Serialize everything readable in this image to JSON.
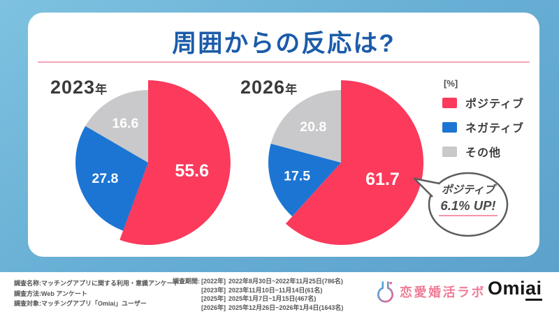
{
  "title": {
    "text": "周囲からの反応は?"
  },
  "colors": {
    "positive_red": "#fb3a5c",
    "negative_blue": "#1c75d3",
    "other_gray": "#c9c9cb",
    "title_blue": "#1b5ba9",
    "divider_pink": "#f2a6b8",
    "background_blue": "#68afd5"
  },
  "chart_data": [
    {
      "type": "pie",
      "year": "2023",
      "year_suffix": "年",
      "unit": "%",
      "labels": [
        "ポジティブ",
        "ネガティブ",
        "その他"
      ],
      "values": [
        55.6,
        27.8,
        16.6
      ],
      "colors": [
        "#fb3a5c",
        "#1c75d3",
        "#c9c9cb"
      ],
      "emphasis_index": 0,
      "start_angle": "top",
      "direction": "clockwise"
    },
    {
      "type": "pie",
      "year": "2026",
      "year_suffix": "年",
      "unit": "%",
      "labels": [
        "ポジティブ",
        "ネガティブ",
        "その他"
      ],
      "values": [
        61.7,
        17.5,
        20.8
      ],
      "colors": [
        "#fb3a5c",
        "#1c75d3",
        "#c9c9cb"
      ],
      "emphasis_index": 0,
      "start_angle": "top",
      "direction": "clockwise",
      "annotation": "ポジティブ 6.1% UP!"
    }
  ],
  "legend": {
    "unit_label": "[%]",
    "items": [
      {
        "label": "ポジティブ",
        "color": "#fb3a5c"
      },
      {
        "label": "ネガティブ",
        "color": "#1c75d3"
      },
      {
        "label": "その他",
        "color": "#c9c9cb"
      }
    ]
  },
  "bubble": {
    "line1": "ポジティブ",
    "line2": "6.1% UP!"
  },
  "footer": {
    "name_label": "調査名称:",
    "name_value": "マッチングアプリに関する利用・意識アンケート",
    "method_label": "調査方法:",
    "method_value": "Web アンケート",
    "target_label": "調査対象:",
    "target_value": "マッチングアプリ「Omiai」ユーザー",
    "period_label": "調査期間:",
    "periods": [
      {
        "year": "[2022年]",
        "range": "2022年8月30日~2022年11月25日(786名)"
      },
      {
        "year": "[2023年]",
        "range": "2023年11月10日~11月14日(61名)"
      },
      {
        "year": "[2025年]",
        "range": "2025年1月7日~1月15日(467名)"
      },
      {
        "year": "[2026年]",
        "range": "2025年12月26日~2026年1月4日(1643名)"
      }
    ]
  },
  "logos": {
    "lab": "恋愛婚活ラボ",
    "omiai_prefix": "Omi",
    "omiai_underlined": "ai"
  }
}
